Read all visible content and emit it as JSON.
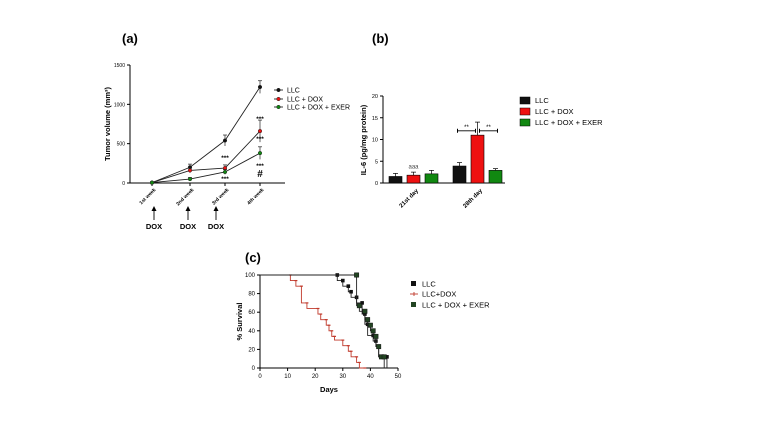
{
  "panels": {
    "a": "(a)",
    "b": "(b)",
    "c": "(c)"
  },
  "colors": {
    "llc": "#111111",
    "llc_dox": "#ee1111",
    "llc_dox_exer": "#118811",
    "surv_llc_dox": "#c0392b"
  },
  "chart_data": [
    {
      "id": "a",
      "type": "line",
      "ylabel": "Tumor volume (mm³)",
      "ylim": [
        0,
        1500
      ],
      "yticks": [
        "0",
        "500",
        "1000",
        "1500"
      ],
      "categories": [
        "1st week",
        "2nd week",
        "3rd week",
        "4th week"
      ],
      "series": [
        {
          "name": "LLC",
          "values": [
            5,
            200,
            540,
            1220
          ],
          "errors": [
            10,
            40,
            70,
            80
          ]
        },
        {
          "name": "LLC + DOX",
          "values": [
            5,
            160,
            190,
            660
          ],
          "errors": [
            10,
            30,
            40,
            140
          ]
        },
        {
          "name": "LLC + DOX + EXER",
          "values": [
            5,
            50,
            140,
            380
          ],
          "errors": [
            10,
            20,
            30,
            80
          ]
        }
      ],
      "annotations": [
        "***",
        "***",
        "***",
        "***",
        "***",
        "#"
      ],
      "dosing": [
        "DOX",
        "DOX",
        "DOX"
      ]
    },
    {
      "id": "b",
      "type": "bar",
      "ylabel": "IL-6 (pg/mg protein)",
      "ylim": [
        0,
        20
      ],
      "yticks": [
        "0",
        "5",
        "10",
        "15",
        "20"
      ],
      "categories": [
        "21st day",
        "28th day"
      ],
      "series": [
        {
          "name": "LLC",
          "values": [
            1.5,
            3.9
          ],
          "errors": [
            0.7,
            0.8
          ]
        },
        {
          "name": "LLC + DOX",
          "values": [
            1.8,
            11.0
          ],
          "errors": [
            0.7,
            3.0
          ]
        },
        {
          "name": "LLC + DOX + EXER",
          "values": [
            2.1,
            2.9
          ],
          "errors": [
            0.8,
            0.4
          ]
        }
      ],
      "annotations": [
        "aaa",
        "**",
        "**"
      ]
    },
    {
      "id": "c",
      "type": "line",
      "xlabel": "Days",
      "ylabel": "% Survival",
      "xlim": [
        0,
        50
      ],
      "ylim": [
        0,
        100
      ],
      "xticks": [
        "0",
        "10",
        "20",
        "30",
        "40",
        "50"
      ],
      "yticks": [
        "0",
        "20",
        "40",
        "60",
        "80",
        "100"
      ],
      "series": [
        {
          "name": "LLC",
          "x": [
            0,
            28,
            30,
            32,
            33,
            35,
            37,
            38,
            39,
            41,
            42,
            43,
            46
          ],
          "y": [
            100,
            94,
            88,
            82,
            76,
            70,
            58,
            47,
            35,
            29,
            23,
            12,
            0
          ]
        },
        {
          "name": "LLC+DOX",
          "x": [
            0,
            11,
            13,
            15,
            17,
            21,
            22,
            24,
            25,
            26,
            27,
            30,
            32,
            33,
            35,
            36,
            38
          ],
          "y": [
            100,
            94,
            88,
            70,
            64,
            58,
            52,
            46,
            40,
            34,
            30,
            24,
            18,
            12,
            6,
            0,
            0
          ]
        },
        {
          "name": "LLC + DOX + EXER",
          "x": [
            0,
            35,
            36,
            38,
            39,
            40,
            41,
            42,
            43,
            44,
            45
          ],
          "y": [
            100,
            67,
            61,
            52,
            46,
            40,
            34,
            23,
            12,
            12,
            0
          ]
        }
      ]
    }
  ]
}
